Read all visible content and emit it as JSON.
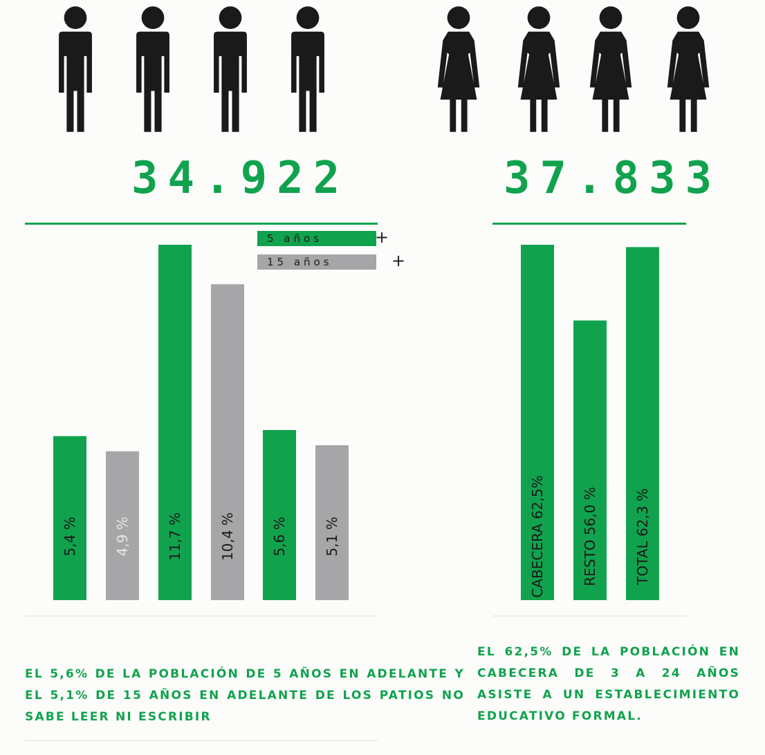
{
  "colors": {
    "green": "#11a24e",
    "gray": "#a6a6a8",
    "dark": "#1a1a1a",
    "light_text": "#d9d9d9"
  },
  "icons": {
    "male": "man-icon",
    "female": "woman-icon"
  },
  "population": {
    "men": "34.922",
    "women": "37.833"
  },
  "legend": {
    "items": [
      {
        "label": "5 años",
        "suffix": "+",
        "color": "#11a24e"
      },
      {
        "label": "15 años",
        "suffix": "+",
        "color": "#a6a6a8"
      }
    ]
  },
  "chart_data": [
    {
      "type": "bar",
      "title": "",
      "xlabel": "",
      "ylabel": "",
      "series": [
        {
          "name": "5 años +",
          "values": [
            5.4,
            11.7,
            5.6
          ],
          "labels": [
            "5,4 %",
            "11,7 %",
            "5,6 %"
          ]
        },
        {
          "name": "15 años +",
          "values": [
            4.9,
            10.4,
            5.1
          ],
          "labels": [
            "4,9 %",
            "10,4 %",
            "5,1 %"
          ]
        }
      ],
      "ylim": [
        0,
        11.7
      ],
      "grid": false
    },
    {
      "type": "bar",
      "title": "",
      "xlabel": "",
      "ylabel": "",
      "categories": [
        "Cabecera",
        "Resto",
        "Total"
      ],
      "values": [
        62.5,
        56.0,
        62.3
      ],
      "labels": [
        "CABECERA 62,5%",
        "RESTO 56,0 %",
        "TOTAL 62,3 %"
      ],
      "grid": false
    }
  ],
  "captions": {
    "left": "El 5,6% de la población de 5 años en adelante y el 5,1% de 15 años en adelante de Los Patios no sabe leer ni escribir",
    "right": "El 62,5% de la población en cabecera de 3 a 24 años asiste a un establecimiento educativo formal."
  }
}
